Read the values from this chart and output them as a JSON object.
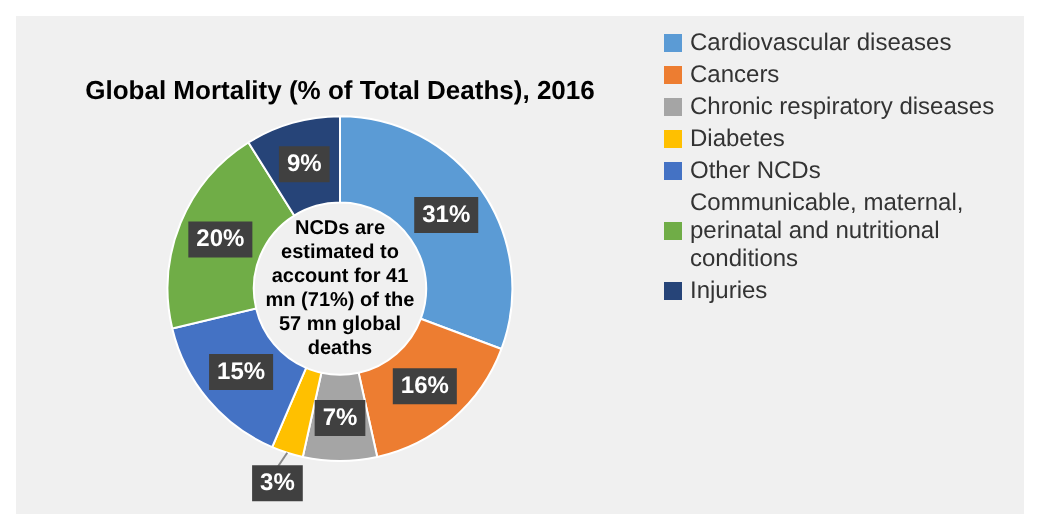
{
  "chart_data": {
    "type": "donut",
    "title": "Global Mortality (% of Total Deaths), 2016",
    "categories": [
      "Cardiovascular diseases",
      "Cancers",
      "Chronic respiratory diseases",
      "Diabetes",
      "Other NCDs",
      "Communicable, maternal, perinatal and nutritional conditions",
      "Injuries"
    ],
    "values": [
      31,
      16,
      7,
      3,
      15,
      20,
      9
    ],
    "colors": [
      "#5b9bd5",
      "#ed7d31",
      "#a5a5a5",
      "#ffc000",
      "#4472c4",
      "#70ad47",
      "#264478"
    ],
    "value_labels": [
      "31%",
      "16%",
      "7%",
      "3%",
      "15%",
      "20%",
      "9%"
    ],
    "legend": "right",
    "annotations": [
      "NCDs are estimated to account for 41 mn (71%) of the 57 mn global deaths"
    ]
  }
}
